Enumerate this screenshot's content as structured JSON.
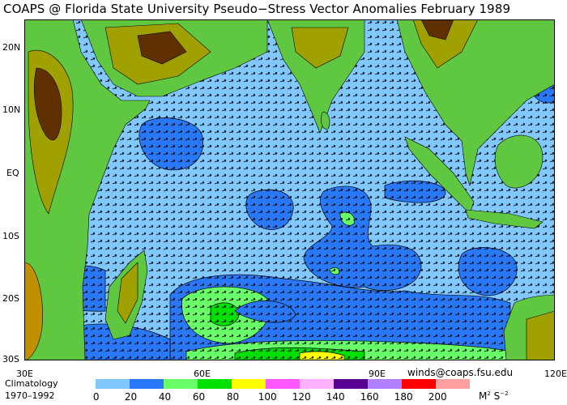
{
  "title": "COAPS @ Florida State University Pseudo−Stress Vector Anomalies  February 1989",
  "latitude_labels": [
    "20N",
    "10N",
    "EQ",
    "10S",
    "20S",
    "30S"
  ],
  "longitude_labels": [
    "30E",
    "60E",
    "90E",
    "120E"
  ],
  "climatology": {
    "line1": "Climatology",
    "line2": "1970–1992"
  },
  "contact": "winds@coaps.fsu.edu",
  "legend": {
    "labels": [
      "0",
      "20",
      "40",
      "60",
      "80",
      "100",
      "120",
      "140",
      "160",
      "180",
      "200"
    ],
    "colors": [
      "#80c8ff",
      "#2878f8",
      "#68ff68",
      "#00e000",
      "#ffff00",
      "#ff58ff",
      "#ffb0ff",
      "#580090",
      "#b080ff",
      "#ff0000",
      "#ffa0a0"
    ],
    "units": "M",
    "units_exp1": "2",
    "units_s": "S",
    "units_exp2": "−2"
  },
  "map_colors": {
    "ocean": "#80c8ff",
    "land_low": "#60c840",
    "land_mid": "#a0a000",
    "land_high": "#603000",
    "coast_gray": "#c0c0c0"
  }
}
